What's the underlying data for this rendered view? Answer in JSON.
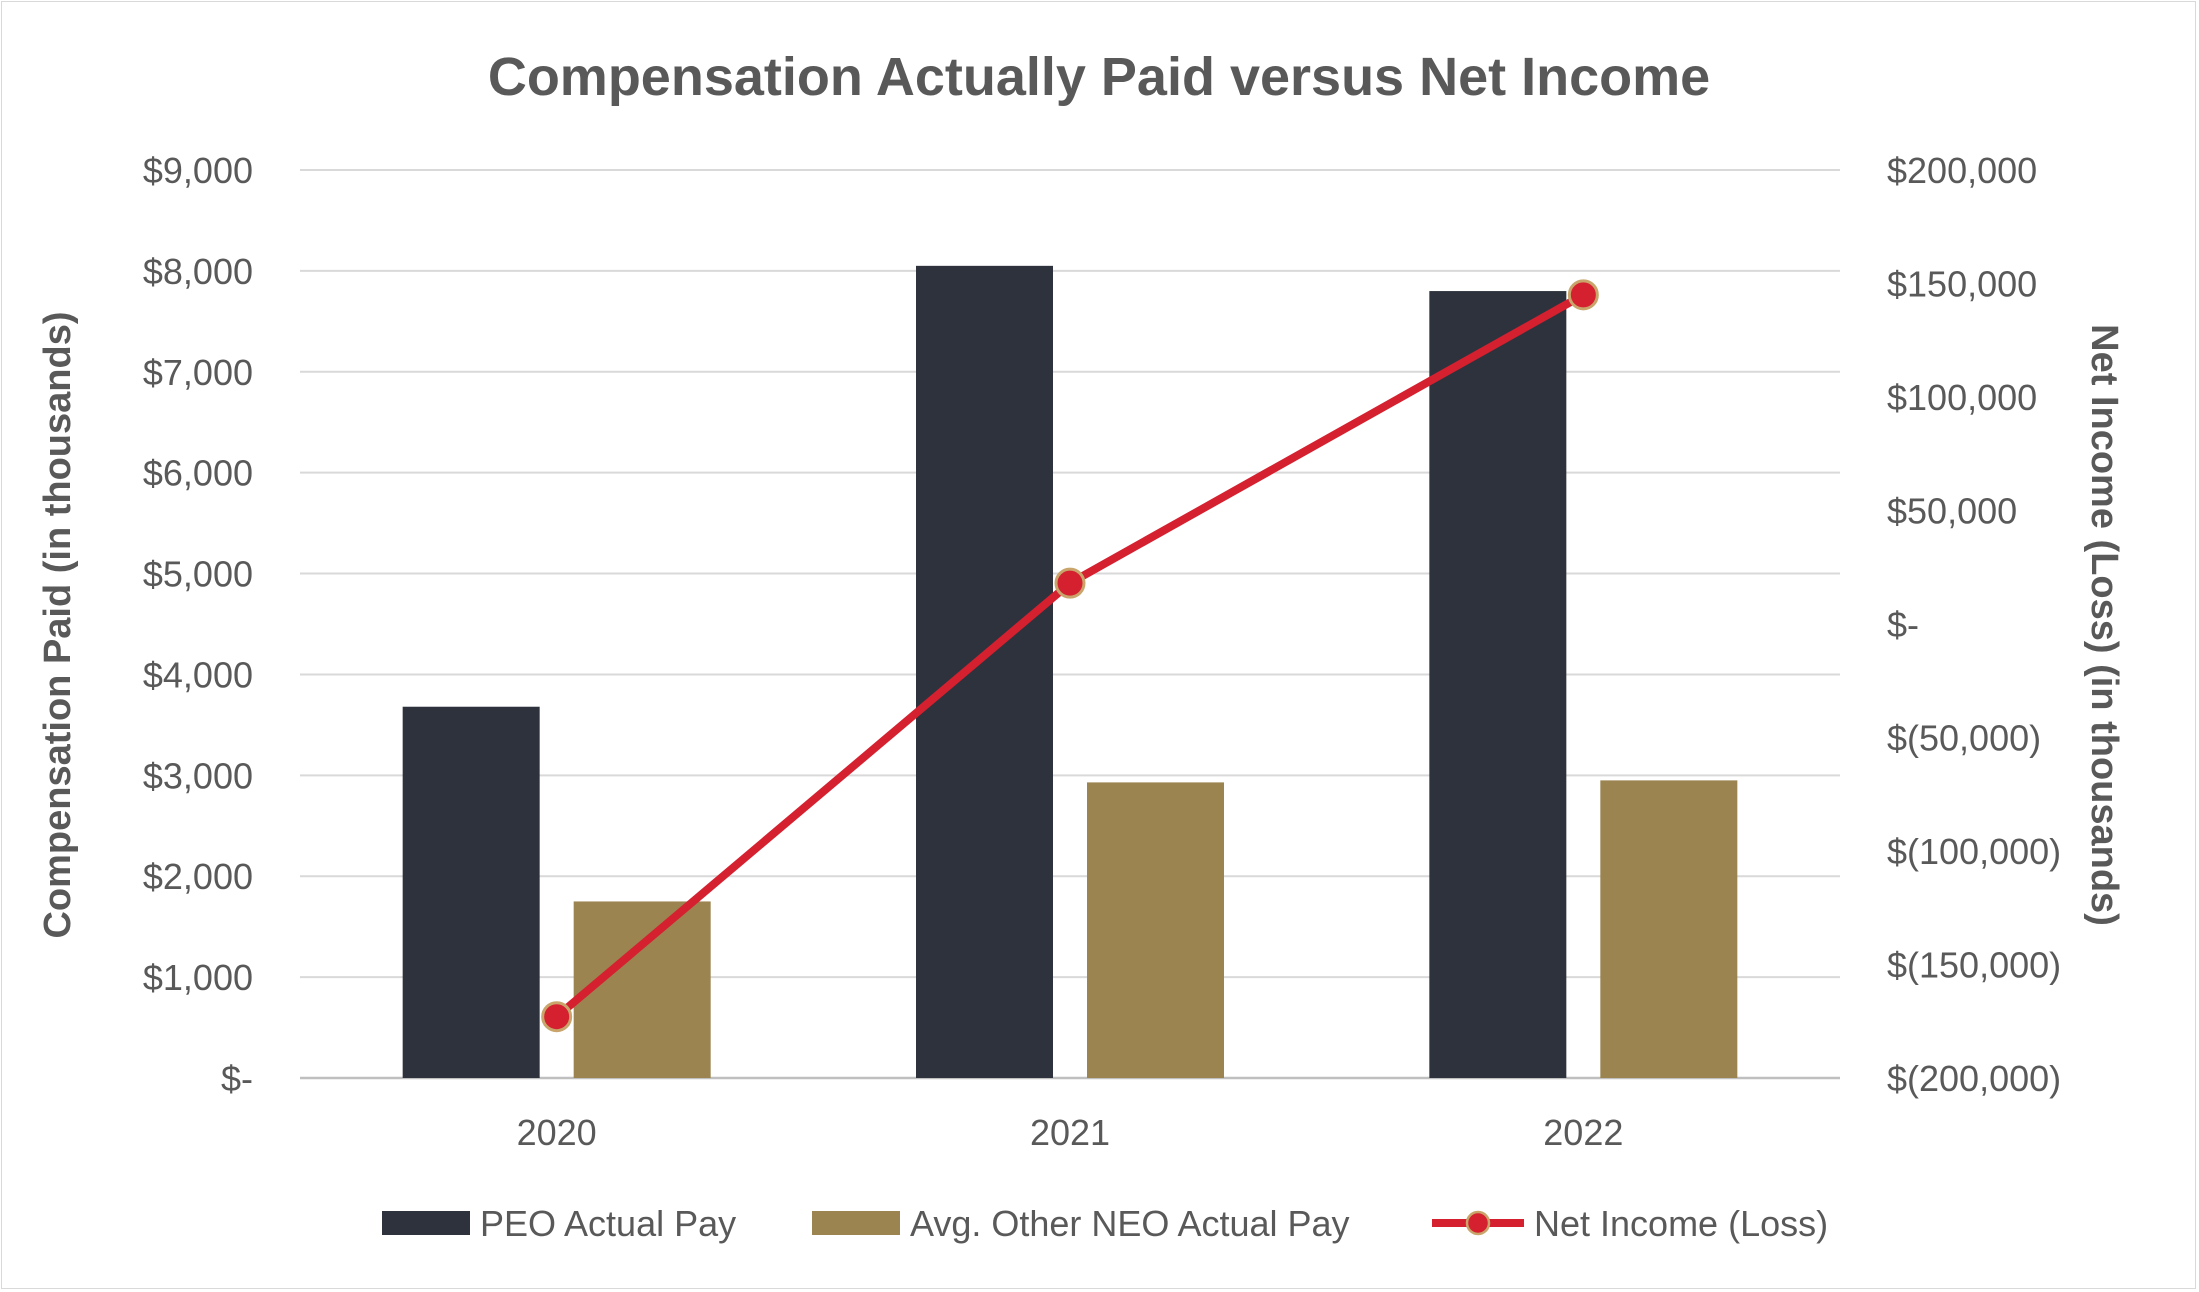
{
  "chart_data": {
    "type": "bar",
    "title": "Compensation Actually Paid versus Net Income",
    "categories": [
      "2020",
      "2021",
      "2022"
    ],
    "y_left": {
      "label": "Compensation Paid (in thousands)",
      "range": [
        0,
        9000
      ],
      "ticks": [
        "$-",
        "$1,000",
        "$2,000",
        "$3,000",
        "$4,000",
        "$5,000",
        "$6,000",
        "$7,000",
        "$8,000",
        "$9,000"
      ]
    },
    "y_right": {
      "label": "Net Income (Loss) (in thousands)",
      "range": [
        -200000,
        200000
      ],
      "ticks": [
        "$(200,000)",
        "$(150,000)",
        "$(100,000)",
        "$(50,000)",
        "$-",
        "$50,000",
        "$100,000",
        "$150,000",
        "$200,000"
      ]
    },
    "series": [
      {
        "name": "PEO Actual Pay",
        "type": "bar",
        "axis": "left",
        "color": "#2d323c",
        "values": [
          3680,
          8050,
          7800
        ]
      },
      {
        "name": "Avg. Other NEO Actual Pay",
        "type": "bar",
        "axis": "left",
        "color": "#9b8450",
        "values": [
          1750,
          2930,
          2950
        ]
      },
      {
        "name": "Net Income (Loss)",
        "type": "line",
        "axis": "right",
        "color": "#d5202f",
        "values": [
          -173000,
          18000,
          145000
        ]
      }
    ],
    "grid": true,
    "legend_position": "bottom"
  }
}
